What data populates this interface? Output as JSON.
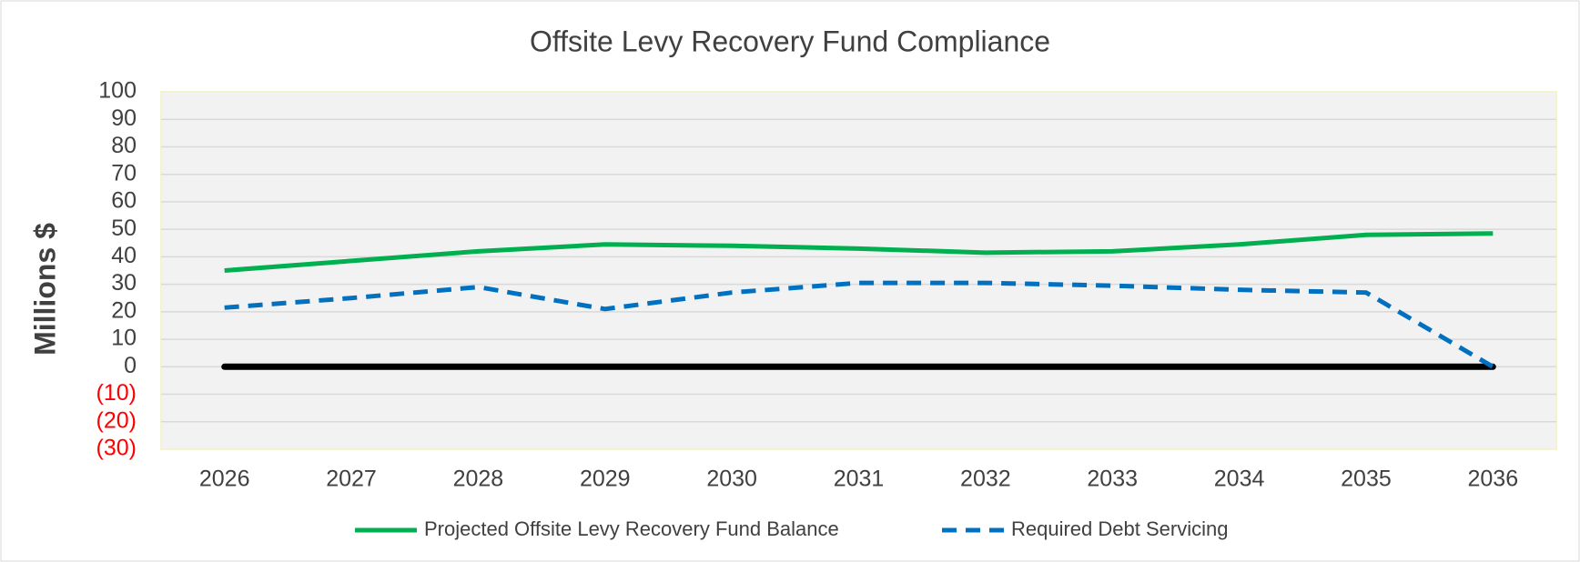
{
  "chart_data": {
    "type": "line",
    "title": "Offsite Levy Recovery Fund Compliance",
    "y_label": "Millions $",
    "categories": [
      "2026",
      "2027",
      "2028",
      "2029",
      "2030",
      "2031",
      "2032",
      "2033",
      "2034",
      "2035",
      "2036"
    ],
    "series": [
      {
        "name": "Projected Offsite Levy Recovery Fund Balance",
        "color": "#00b050",
        "dash": false,
        "values": [
          35,
          38.5,
          42,
          44.5,
          44,
          43,
          41.5,
          42,
          44.5,
          48,
          48.5
        ]
      },
      {
        "name": "Required Debt Servicing",
        "color": "#0070c0",
        "dash": true,
        "values": [
          21.5,
          25,
          29,
          21,
          27,
          30.5,
          30.5,
          29.5,
          28,
          27,
          0
        ]
      }
    ],
    "ylim": [
      -30,
      100
    ],
    "yticks": [
      {
        "value": -30,
        "label": "(30)"
      },
      {
        "value": -20,
        "label": "(20)"
      },
      {
        "value": -10,
        "label": "(10)"
      },
      0,
      10,
      20,
      30,
      40,
      50,
      60,
      70,
      80,
      90,
      100
    ],
    "negative_tick_color": "#ff0000",
    "zero_line_color": "#000000",
    "grid": true,
    "legend": "bottom"
  }
}
